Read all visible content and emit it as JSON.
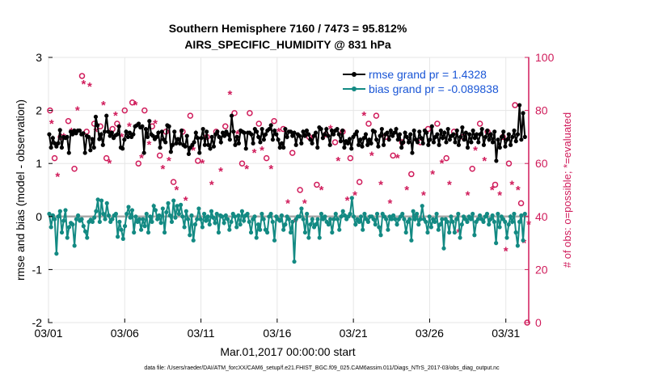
{
  "chart_data": {
    "type": "line",
    "title_line1": "Southern Hemisphere 7160 / 7473 = 95.812%",
    "title_line2": "AIRS_SPECIFIC_HUMIDITY @ 831 hPa",
    "xlabel": "Mar.01,2017 00:00:00 start",
    "ylabel": "rmse and bias (model - observation)",
    "ylabel_right": "# of obs: o=possible; *=evaluated",
    "footer": "data file: /Users/raeder/DAI/ATM_forcXX/CAM6_setup/f.e21.FHIST_BGC.f09_025.CAM6assim.011/Diags_NTrS_2017-03/obs_diag_output.nc",
    "xlim": [
      0,
      31.5
    ],
    "ylim": [
      -2,
      3
    ],
    "ylim_right": [
      0,
      100
    ],
    "x_ticks": [
      0,
      5,
      10,
      15,
      20,
      25,
      30
    ],
    "x_tick_labels": [
      "03/01",
      "03/06",
      "03/11",
      "03/16",
      "03/21",
      "03/26",
      "03/31"
    ],
    "y_ticks": [
      -2,
      -1,
      0,
      1,
      2,
      3
    ],
    "y_tick_labels": [
      "-2",
      "-1",
      "0",
      "1",
      "2",
      "3"
    ],
    "y_right_ticks": [
      0,
      20,
      40,
      60,
      80,
      100
    ],
    "y_right_tick_labels": [
      "0",
      "20",
      "40",
      "60",
      "80",
      "100"
    ],
    "legend": [
      {
        "name": "rmse grand pr = 1.4328",
        "color": "#000000"
      },
      {
        "name": "bias grand pr = -0.089838",
        "color": "#138a83"
      }
    ],
    "series": [
      {
        "name": "rmse",
        "color": "#000000",
        "axis": "left",
        "values": [
          1.55,
          1.3,
          1.48,
          1.38,
          1.32,
          1.38,
          1.63,
          1.3,
          1.5,
          1.48,
          1.5,
          1.2,
          1.6,
          1.55,
          1.62,
          1.57,
          1.62,
          1.62,
          1.55,
          1.57,
          1.2,
          1.52,
          1.5,
          1.25,
          1.46,
          1.3,
          1.88,
          1.72,
          1.46,
          1.55,
          1.35,
          1.6,
          1.9,
          1.6,
          1.52,
          1.58,
          1.48,
          1.53,
          1.55,
          1.7,
          1.3,
          1.28,
          1.45,
          1.6,
          1.5,
          1.58,
          1.5,
          1.55,
          1.7,
          1.72,
          1.75,
          1.68,
          1.7,
          1.2,
          1.65,
          1.5,
          1.8,
          1.55,
          1.52,
          1.46,
          1.5,
          1.58,
          1.3,
          1.6,
          1.45,
          1.4,
          1.72,
          1.7,
          1.22,
          1.35,
          1.6,
          1.38,
          1.46,
          1.38,
          1.62,
          1.35,
          1.32,
          1.52,
          1.18,
          1.3,
          1.35,
          1.4,
          1.58,
          1.48,
          1.2,
          1.48,
          1.65,
          1.35,
          1.6,
          1.35,
          1.28,
          1.5,
          1.32,
          1.55,
          1.6,
          1.5,
          1.4,
          1.58,
          1.52,
          1.6,
          1.55,
          1.45,
          1.9,
          1.6,
          1.35,
          1.5,
          1.38,
          1.62,
          1.6,
          1.58,
          1.28,
          1.58,
          1.58,
          1.55,
          1.38,
          1.65,
          1.6,
          1.5,
          1.4,
          1.65,
          1.45,
          1.55,
          1.62,
          1.65,
          1.72,
          1.45,
          1.62,
          1.55,
          1.45,
          1.3,
          1.38,
          1.3,
          1.65,
          1.5,
          1.6,
          1.6,
          1.52,
          1.58,
          1.35,
          1.55,
          1.52,
          1.38,
          1.6,
          1.52,
          1.62,
          1.55,
          1.45,
          1.38,
          1.52,
          1.58,
          1.3,
          1.68,
          1.65,
          1.48,
          1.55,
          1.65,
          1.52,
          1.35,
          1.62,
          1.55,
          1.62,
          1.65,
          1.55,
          1.42,
          1.62,
          1.3,
          1.42,
          1.38,
          1.46,
          1.28,
          1.5,
          1.55,
          1.6,
          1.35,
          1.45,
          1.32,
          1.48,
          1.55,
          1.35,
          1.45,
          1.38,
          1.62,
          1.6,
          1.45,
          1.32,
          1.52,
          1.65,
          1.35,
          1.55,
          1.58,
          1.45,
          1.62,
          1.52,
          1.58,
          1.65,
          1.45,
          1.55,
          1.3,
          1.4,
          1.58,
          1.5,
          1.4,
          1.55,
          1.2,
          1.62,
          1.45,
          1.4,
          1.6,
          1.48,
          1.38,
          1.62,
          1.58,
          1.35,
          1.45,
          1.7,
          1.4,
          1.5,
          1.55,
          1.35,
          1.62,
          1.48,
          1.58,
          1.4,
          1.65,
          1.45,
          1.52,
          1.55,
          1.4,
          1.62,
          1.35,
          1.5,
          1.68,
          1.45,
          1.58,
          1.3,
          1.55,
          1.4,
          1.62,
          1.48,
          1.55,
          1.4,
          1.55,
          1.65,
          1.35,
          1.5,
          1.62,
          1.45,
          1.55,
          1.4,
          1.6,
          1.05,
          1.45,
          1.3,
          1.5,
          1.6,
          1.32,
          1.45,
          1.55,
          1.35,
          1.5,
          1.62,
          1.42,
          1.55,
          2.1,
          1.45,
          1.95,
          1.5
        ]
      },
      {
        "name": "bias",
        "color": "#138a83",
        "axis": "left",
        "values": [
          0.05,
          -0.2,
          0.02,
          -0.05,
          -0.7,
          0.0,
          0.1,
          -0.3,
          -0.08,
          0.12,
          -0.4,
          -0.2,
          -0.12,
          -0.15,
          -0.55,
          -0.05,
          0.02,
          -0.08,
          -0.05,
          -0.18,
          -0.28,
          -0.4,
          -0.1,
          -0.06,
          -0.1,
          -0.02,
          0.1,
          0.32,
          -0.1,
          0.3,
          0.05,
          -0.05,
          0.25,
          0.02,
          -0.1,
          -0.05,
          0.02,
          0.05,
          -0.38,
          -0.1,
          -0.25,
          -0.42,
          -0.18,
          0.05,
          0.18,
          -0.02,
          0.12,
          -0.3,
          0.0,
          -0.1,
          -0.05,
          -0.25,
          -0.05,
          -0.18,
          0.05,
          -0.3,
          0.0,
          -0.1,
          0.2,
          0.12,
          -0.05,
          0.02,
          -0.12,
          0.15,
          -0.3,
          0.08,
          0.25,
          0.02,
          -0.1,
          0.3,
          -0.02,
          0.2,
          0.05,
          0.22,
          0.0,
          -0.2,
          0.1,
          -0.05,
          -0.35,
          0.02,
          -0.45,
          -0.15,
          -0.05,
          0.15,
          -0.05,
          -0.2,
          0.05,
          -0.08,
          0.0,
          -0.15,
          0.1,
          -0.02,
          -0.12,
          0.05,
          -0.3,
          0.02,
          0.0,
          -0.12,
          0.02,
          -0.05,
          -0.25,
          -0.1,
          0.05,
          0.0,
          -0.2,
          0.02,
          -0.15,
          0.1,
          -0.08,
          0.02,
          0.05,
          -0.1,
          -0.3,
          -0.05,
          0.0,
          -0.4,
          -0.15,
          -0.25,
          0.05,
          -0.05,
          -0.25,
          -0.3,
          0.0,
          0.05,
          -0.1,
          -0.45,
          0.0,
          -0.05,
          -0.08,
          0.02,
          -0.25,
          -0.15,
          0.0,
          -0.05,
          -0.3,
          -0.1,
          -0.85,
          -0.05,
          0.0,
          0.0,
          0.15,
          -0.05,
          -0.3,
          0.05,
          -0.4,
          -0.15,
          -0.05,
          -0.2,
          -0.15,
          -0.05,
          -0.4,
          0.05,
          -0.05,
          0.0,
          -0.1,
          -0.15,
          -0.05,
          -0.3,
          -0.05,
          0.05,
          -0.05,
          -0.25,
          0.0,
          0.1,
          0.02,
          -0.05,
          0.0,
          0.05,
          0.35,
          0.0,
          -0.15,
          -0.05,
          -0.1,
          0.0,
          -0.25,
          0.05,
          -0.05,
          -0.1,
          0.0,
          0.0,
          -0.05,
          -0.15,
          0.05,
          -0.2,
          -0.35,
          0.05,
          0.0,
          -0.05,
          -0.25,
          0.0,
          -0.05,
          0.02,
          -0.05,
          -0.15,
          -0.05,
          0.0,
          0.05,
          -0.05,
          -0.3,
          -0.1,
          -0.05,
          -0.45,
          0.1,
          -0.05,
          0.05,
          -0.15,
          -0.05,
          0.2,
          -0.05,
          -0.1,
          -0.3,
          0.0,
          -0.2,
          -0.05,
          -0.1,
          0.05,
          -0.25,
          -0.15,
          -0.05,
          -0.6,
          -0.05,
          -0.1,
          -0.3,
          0.0,
          -0.1,
          -0.3,
          -0.05,
          0.05,
          -0.4,
          -0.15,
          0.0,
          -0.05,
          -0.1,
          0.0,
          -0.05,
          0.05,
          -0.35,
          -0.1,
          -0.05,
          0.02,
          -0.05,
          -0.1,
          0.0,
          0.05,
          -0.15,
          -0.05,
          0.02,
          -0.1,
          -0.5,
          0.05,
          -0.2,
          0.0,
          -0.05,
          -0.1,
          -0.4,
          -0.15,
          0.0,
          -0.1,
          0.05,
          -0.3,
          -0.55,
          -0.1,
          0.02,
          -0.45,
          0.05
        ]
      },
      {
        "name": "obs possible",
        "color": "#d01c5b",
        "axis": "right",
        "marker": "o",
        "x": [
          0.1,
          0.4,
          0.8,
          1.3,
          1.7,
          2.2,
          2.5,
          3.0,
          3.4,
          3.8,
          4.2,
          4.5,
          5.0,
          5.5,
          5.9,
          6.3,
          6.8,
          7.3,
          7.7,
          8.2,
          8.8,
          9.3,
          9.8,
          10.4,
          11.0,
          11.6,
          12.2,
          12.7,
          13.2,
          13.8,
          14.3,
          14.8,
          15.4,
          16.0,
          16.5,
          17.1,
          17.6,
          18.2,
          18.8,
          19.3,
          19.8,
          20.4,
          21.0,
          21.5,
          22.1,
          22.6,
          23.2,
          23.8,
          24.4,
          24.9,
          25.5,
          26.1,
          26.6,
          27.2,
          27.8,
          28.3,
          28.8,
          29.3,
          29.8,
          30.2,
          30.6,
          31.0,
          31.4
        ],
        "values": [
          80,
          62,
          70,
          76,
          58,
          93,
          72,
          75,
          74,
          62,
          73,
          75,
          80,
          83,
          60,
          80,
          74,
          63,
          72,
          53,
          72,
          78,
          61,
          70,
          72,
          74,
          79,
          60,
          79,
          75,
          62,
          76,
          73,
          64,
          50,
          70,
          52,
          71,
          68,
          72,
          62,
          53,
          75,
          78,
          70,
          63,
          68,
          56,
          68,
          73,
          75,
          62,
          72,
          70,
          58,
          75,
          72,
          52,
          70,
          60,
          82,
          45,
          0
        ]
      },
      {
        "name": "obs evaluated",
        "color": "#d01c5b",
        "axis": "right",
        "marker": "*",
        "x": [
          0.2,
          0.6,
          1.0,
          1.5,
          1.9,
          2.3,
          2.7,
          3.1,
          3.6,
          4.0,
          4.4,
          4.8,
          5.3,
          5.7,
          6.1,
          6.6,
          7.0,
          7.5,
          7.9,
          8.4,
          9.0,
          9.5,
          10.1,
          10.7,
          11.3,
          11.9,
          12.4,
          13.0,
          13.5,
          14.0,
          14.6,
          15.1,
          15.7,
          16.2,
          16.8,
          17.3,
          17.9,
          18.5,
          19.0,
          19.6,
          20.1,
          20.7,
          21.2,
          21.8,
          22.4,
          22.9,
          23.5,
          24.1,
          24.6,
          25.2,
          25.8,
          26.3,
          26.9,
          27.5,
          28.0,
          28.6,
          29.1,
          29.6,
          30.0,
          30.4,
          30.8,
          31.2,
          31.5
        ],
        "values": [
          75,
          55,
          70,
          72,
          80,
          90,
          89,
          72,
          82,
          60,
          78,
          70,
          74,
          82,
          62,
          67,
          75,
          58,
          61,
          50,
          46,
          65,
          60,
          52,
          57,
          86,
          71,
          58,
          64,
          65,
          58,
          72,
          45,
          38,
          45,
          69,
          50,
          73,
          61,
          46,
          48,
          78,
          63,
          52,
          45,
          62,
          50,
          40,
          48,
          56,
          60,
          52,
          34,
          48,
          65,
          61,
          50,
          48,
          27,
          52,
          50,
          30,
          37
        ]
      }
    ]
  }
}
